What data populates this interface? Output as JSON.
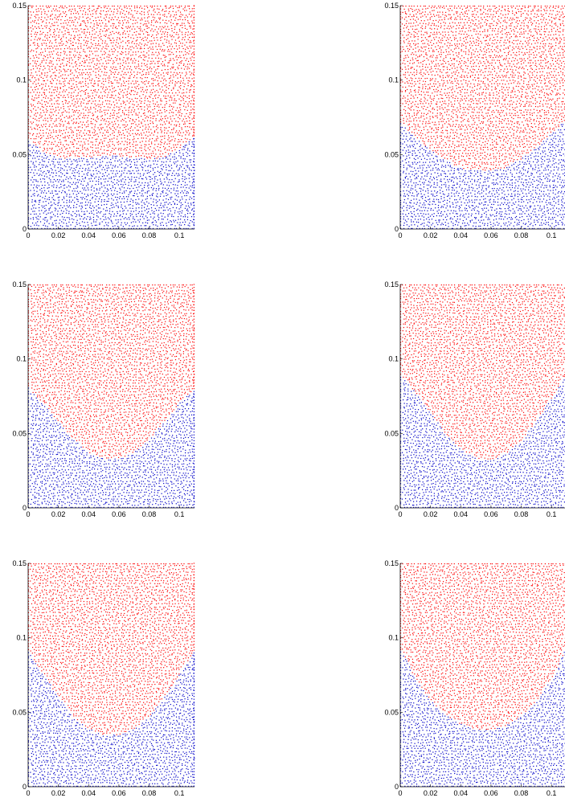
{
  "figure": {
    "point_colors": {
      "upper_phase": "#ff0000",
      "lower_phase": "#0000c8"
    },
    "point_size": "tiny dots",
    "grid": false,
    "legend": "none"
  },
  "chart_data": [
    {
      "type": "scatter",
      "title": "",
      "xlabel": "",
      "ylabel": "",
      "xlim": [
        0,
        0.11
      ],
      "ylim": [
        0,
        0.15
      ],
      "xticks": [
        0,
        0.02,
        0.04,
        0.06,
        0.08,
        0.1
      ],
      "xtick_labels": [
        "0",
        "0.02",
        "0.04",
        "0.06",
        "0.08",
        "0.1"
      ],
      "yticks": [
        0,
        0.05,
        0.1,
        0.15
      ],
      "ytick_labels": [
        "0",
        "0.05",
        "0.1",
        "0.15"
      ],
      "series": [
        {
          "color": "#ff0000",
          "region": "above interface"
        },
        {
          "color": "#0000c8",
          "region": "below interface"
        }
      ],
      "interface": {
        "x": [
          0,
          0.01,
          0.02,
          0.03,
          0.04,
          0.05,
          0.06,
          0.07,
          0.08,
          0.09,
          0.1,
          0.11
        ],
        "y": [
          0.06,
          0.052,
          0.048,
          0.047,
          0.048,
          0.049,
          0.049,
          0.048,
          0.047,
          0.048,
          0.054,
          0.062
        ]
      }
    },
    {
      "type": "scatter",
      "title": "",
      "xlabel": "",
      "ylabel": "",
      "xlim": [
        0,
        0.11
      ],
      "ylim": [
        0,
        0.15
      ],
      "xticks": [
        0,
        0.02,
        0.04,
        0.06,
        0.08,
        0.1
      ],
      "xtick_labels": [
        "0",
        "0.02",
        "0.04",
        "0.06",
        "0.08",
        "0.1"
      ],
      "yticks": [
        0,
        0.05,
        0.1,
        0.15
      ],
      "ytick_labels": [
        "0",
        "0.05",
        "0.1",
        "0.15"
      ],
      "series": [
        {
          "color": "#ff0000",
          "region": "above interface"
        },
        {
          "color": "#0000c8",
          "region": "below interface"
        }
      ],
      "interface": {
        "x": [
          0,
          0.01,
          0.02,
          0.03,
          0.04,
          0.05,
          0.06,
          0.07,
          0.08,
          0.09,
          0.1,
          0.11
        ],
        "y": [
          0.071,
          0.062,
          0.053,
          0.046,
          0.041,
          0.039,
          0.039,
          0.041,
          0.047,
          0.055,
          0.064,
          0.074
        ]
      }
    },
    {
      "type": "scatter",
      "title": "",
      "xlabel": "",
      "ylabel": "",
      "xlim": [
        0,
        0.11
      ],
      "ylim": [
        0,
        0.15
      ],
      "xticks": [
        0,
        0.02,
        0.04,
        0.06,
        0.08,
        0.1
      ],
      "xtick_labels": [
        "0",
        "0.02",
        "0.04",
        "0.06",
        "0.08",
        "0.1"
      ],
      "yticks": [
        0,
        0.05,
        0.1,
        0.15
      ],
      "ytick_labels": [
        "0",
        "0.05",
        "0.1",
        "0.15"
      ],
      "series": [
        {
          "color": "#ff0000",
          "region": "above interface"
        },
        {
          "color": "#0000c8",
          "region": "below interface"
        }
      ],
      "interface": {
        "x": [
          0,
          0.01,
          0.02,
          0.03,
          0.04,
          0.05,
          0.06,
          0.07,
          0.08,
          0.09,
          0.1,
          0.11
        ],
        "y": [
          0.081,
          0.07,
          0.058,
          0.046,
          0.037,
          0.033,
          0.033,
          0.037,
          0.046,
          0.058,
          0.07,
          0.08
        ]
      }
    },
    {
      "type": "scatter",
      "title": "",
      "xlabel": "",
      "ylabel": "",
      "xlim": [
        0,
        0.11
      ],
      "ylim": [
        0,
        0.15
      ],
      "xticks": [
        0,
        0.02,
        0.04,
        0.06,
        0.08,
        0.1
      ],
      "xtick_labels": [
        "0",
        "0.02",
        "0.04",
        "0.06",
        "0.08",
        "0.1"
      ],
      "yticks": [
        0,
        0.05,
        0.1,
        0.15
      ],
      "ytick_labels": [
        "0",
        "0.05",
        "0.1",
        "0.15"
      ],
      "series": [
        {
          "color": "#ff0000",
          "region": "above interface"
        },
        {
          "color": "#0000c8",
          "region": "below interface"
        }
      ],
      "interface": {
        "x": [
          0,
          0.01,
          0.02,
          0.03,
          0.04,
          0.05,
          0.06,
          0.07,
          0.08,
          0.09,
          0.1,
          0.11
        ],
        "y": [
          0.089,
          0.078,
          0.064,
          0.05,
          0.039,
          0.033,
          0.032,
          0.036,
          0.045,
          0.058,
          0.073,
          0.089
        ]
      }
    },
    {
      "type": "scatter",
      "title": "",
      "xlabel": "",
      "ylabel": "",
      "xlim": [
        0,
        0.11
      ],
      "ylim": [
        0,
        0.15
      ],
      "xticks": [
        0,
        0.02,
        0.04,
        0.06,
        0.08,
        0.1
      ],
      "xtick_labels": [
        "0",
        "0.02",
        "0.04",
        "0.06",
        "0.08",
        "0.1"
      ],
      "yticks": [
        0,
        0.05,
        0.1,
        0.15
      ],
      "ytick_labels": [
        "0",
        "0.05",
        "0.1",
        "0.15"
      ],
      "series": [
        {
          "color": "#ff0000",
          "region": "above interface"
        },
        {
          "color": "#0000c8",
          "region": "below interface"
        }
      ],
      "interface": {
        "x": [
          0,
          0.01,
          0.02,
          0.03,
          0.04,
          0.05,
          0.06,
          0.07,
          0.08,
          0.09,
          0.1,
          0.11
        ],
        "y": [
          0.091,
          0.076,
          0.06,
          0.047,
          0.039,
          0.035,
          0.035,
          0.039,
          0.047,
          0.06,
          0.076,
          0.09
        ]
      }
    },
    {
      "type": "scatter",
      "title": "",
      "xlabel": "",
      "ylabel": "",
      "xlim": [
        0,
        0.11
      ],
      "ylim": [
        0,
        0.15
      ],
      "xticks": [
        0,
        0.02,
        0.04,
        0.06,
        0.08,
        0.1
      ],
      "xtick_labels": [
        "0",
        "0.02",
        "0.04",
        "0.06",
        "0.08",
        "0.1"
      ],
      "yticks": [
        0,
        0.05,
        0.1,
        0.15
      ],
      "ytick_labels": [
        "0",
        "0.05",
        "0.1",
        "0.15"
      ],
      "series": [
        {
          "color": "#ff0000",
          "region": "above interface"
        },
        {
          "color": "#0000c8",
          "region": "below interface"
        }
      ],
      "interface": {
        "x": [
          0,
          0.005,
          0.01,
          0.02,
          0.03,
          0.04,
          0.05,
          0.06,
          0.07,
          0.08,
          0.09,
          0.1,
          0.105,
          0.11
        ],
        "y": [
          0.092,
          0.084,
          0.072,
          0.058,
          0.048,
          0.042,
          0.038,
          0.038,
          0.041,
          0.047,
          0.057,
          0.072,
          0.082,
          0.094
        ]
      }
    }
  ]
}
